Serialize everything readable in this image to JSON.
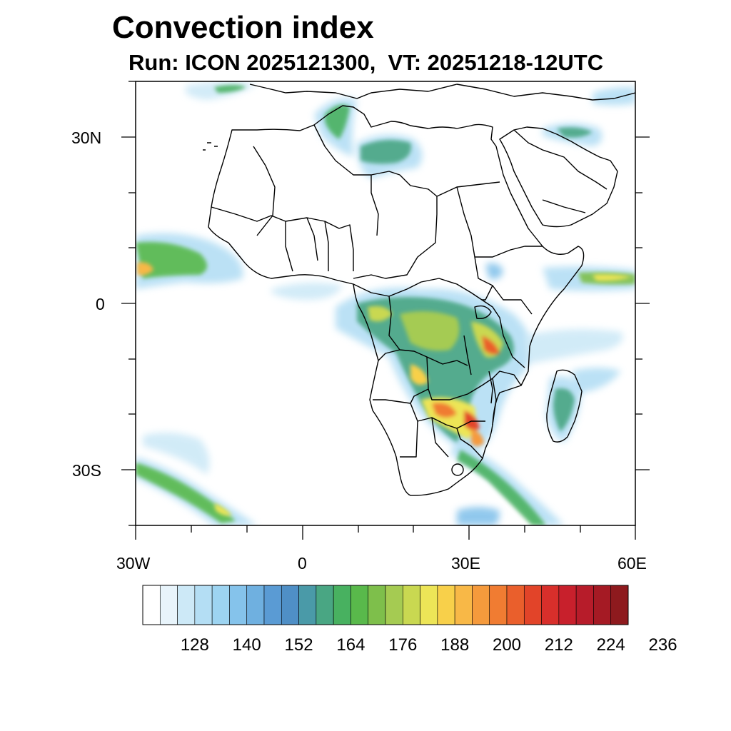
{
  "title": "Convection index",
  "subtitle": "Run: ICON 2025121300,  VT: 20251218-12UTC",
  "axes": {
    "lon_range": [
      -30,
      60
    ],
    "lat_range": [
      -40,
      40
    ],
    "lon_ticks": [
      {
        "value": -30,
        "label": "30W"
      },
      {
        "value": 0,
        "label": "0"
      },
      {
        "value": 30,
        "label": "30E"
      },
      {
        "value": 60,
        "label": "60E"
      }
    ],
    "lat_ticks": [
      {
        "value": 30,
        "label": "30N"
      },
      {
        "value": 0,
        "label": "0"
      },
      {
        "value": -30,
        "label": "30S"
      }
    ]
  },
  "colorbar": {
    "colors": [
      "#ffffff",
      "#e8f4fb",
      "#cde9f7",
      "#b4def4",
      "#9dd4f1",
      "#85c3eb",
      "#6fb0e0",
      "#5a9bd4",
      "#4f8fc6",
      "#4a9aa8",
      "#49a683",
      "#48b160",
      "#59b94b",
      "#7ebf4b",
      "#a5cb52",
      "#c9d851",
      "#ede557",
      "#f8d04a",
      "#f8b847",
      "#f59a3c",
      "#f07c32",
      "#ea5f2c",
      "#e24429",
      "#d82f2b",
      "#c8202c",
      "#b71c2a",
      "#a51a24",
      "#8e1a1e"
    ],
    "labels": [
      "128",
      "140",
      "152",
      "164",
      "176",
      "188",
      "200",
      "212",
      "224",
      "236"
    ]
  },
  "map_features": {
    "region": "Africa and surrounding ocean",
    "convection_areas": [
      {
        "name": "Central and southern Africa",
        "intensity": "high"
      },
      {
        "name": "Southeast Africa / Mozambique corridor",
        "intensity": "high"
      },
      {
        "name": "Madagascar",
        "intensity": "medium"
      },
      {
        "name": "Eastern Atlantic near 5N-10N",
        "intensity": "medium"
      },
      {
        "name": "Western Indian Ocean near 5N",
        "intensity": "medium"
      },
      {
        "name": "Northwest Africa / Atlas",
        "intensity": "medium"
      },
      {
        "name": "South Atlantic frontal band",
        "intensity": "medium"
      },
      {
        "name": "Arabian Peninsula / Persian Gulf",
        "intensity": "low"
      }
    ]
  }
}
